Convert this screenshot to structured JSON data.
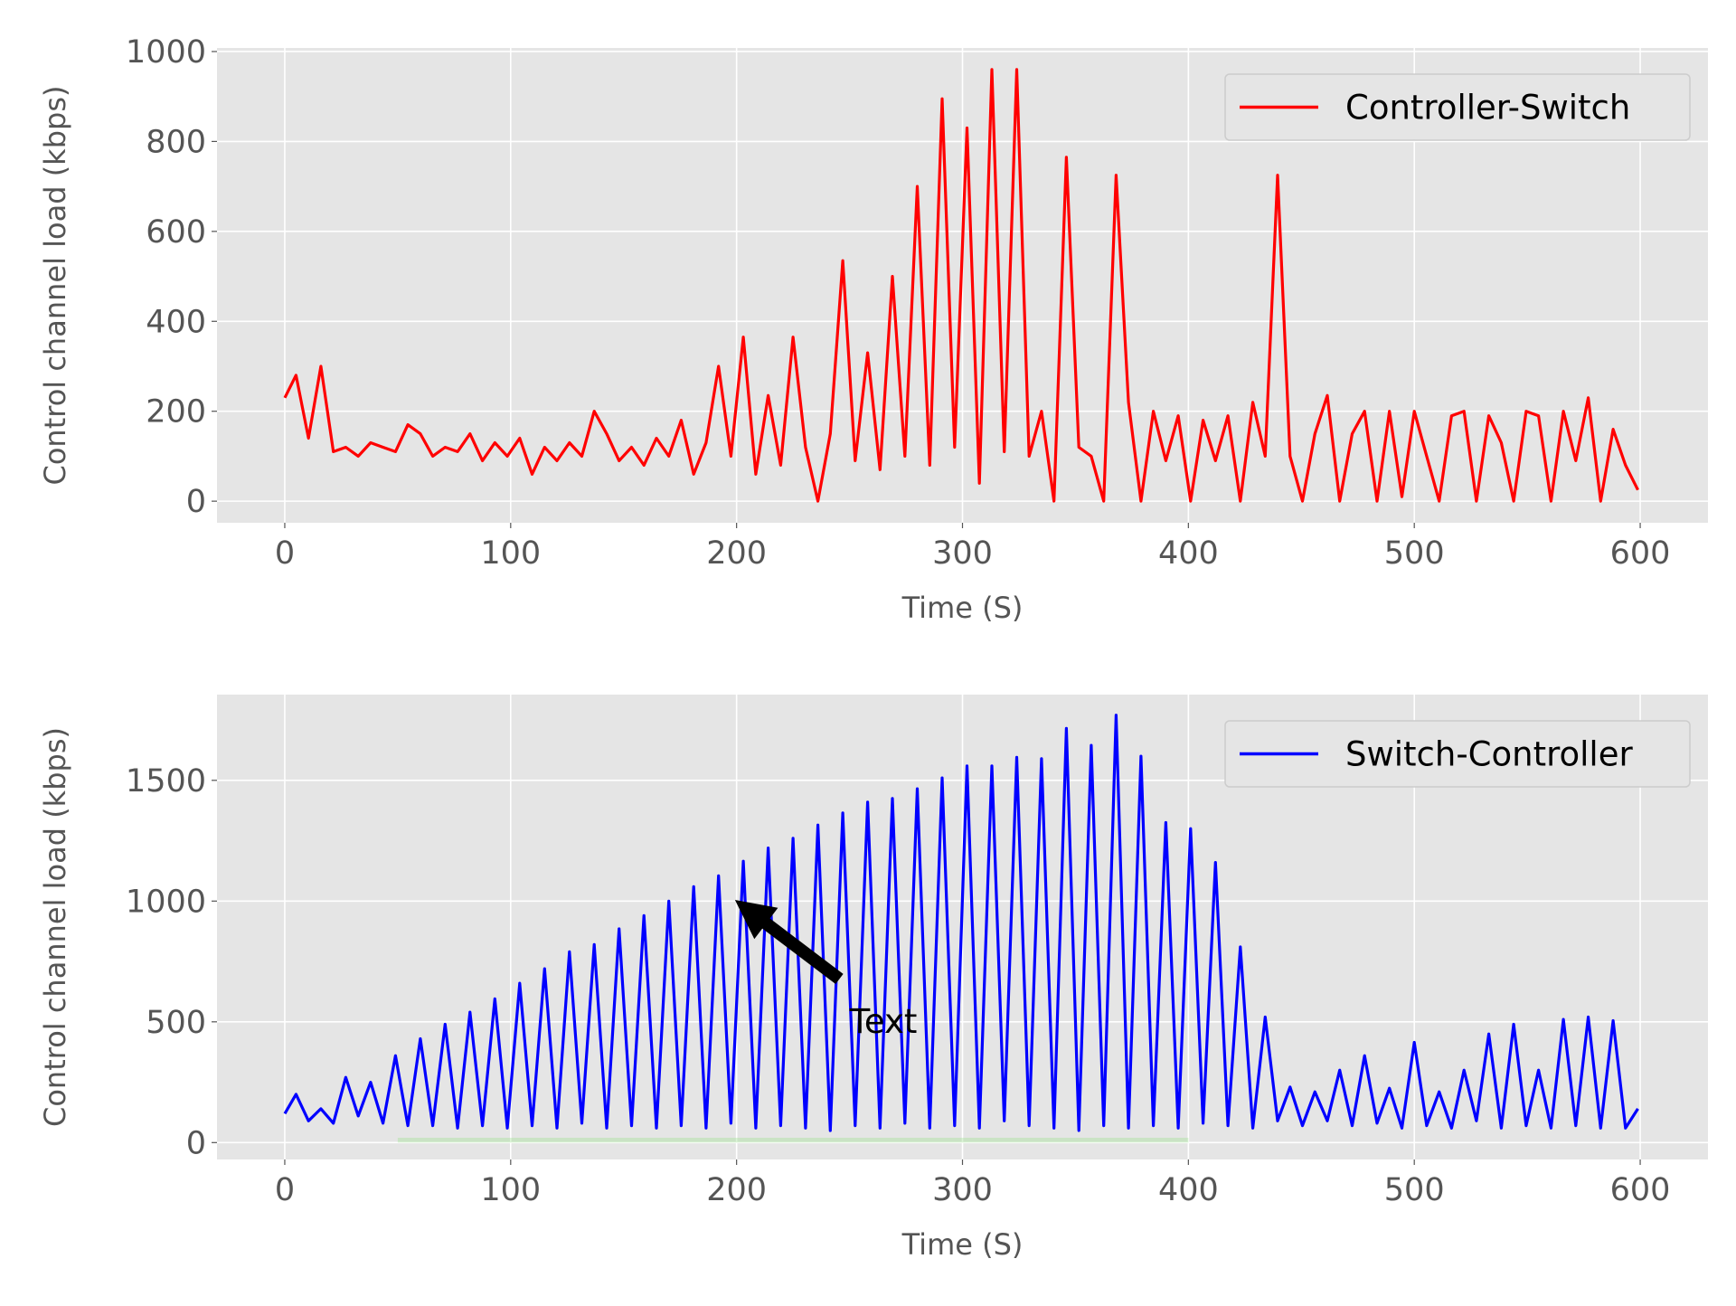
{
  "chart_data": [
    {
      "type": "line",
      "xlabel": "Time (S)",
      "ylabel": "Control channel load (kbps)",
      "xlim": [
        -30,
        630
      ],
      "ylim": [
        -48,
        1008
      ],
      "xticks": [
        0,
        100,
        200,
        300,
        400,
        500,
        600
      ],
      "yticks": [
        0,
        200,
        400,
        600,
        800,
        1000
      ],
      "grid": true,
      "legend": "upper right",
      "x": [
        0,
        5,
        10.5,
        16,
        21.5,
        27,
        32.5,
        38,
        43.5,
        49,
        54.5,
        60,
        65.5,
        71,
        76.5,
        82,
        87.5,
        93,
        98.5,
        104,
        109.5,
        115,
        120.5,
        126,
        131.5,
        137,
        142.5,
        148,
        153.5,
        159,
        164.5,
        170,
        175.5,
        181,
        186.5,
        192,
        197.5,
        203,
        208.5,
        214,
        219.5,
        225,
        230.5,
        236,
        241.5,
        247,
        252.5,
        258,
        263.5,
        269,
        274.5,
        280,
        285.5,
        291,
        296.5,
        302,
        307.5,
        313,
        318.5,
        324,
        329.5,
        335,
        340.5,
        346,
        351.5,
        357,
        362.5,
        368,
        373.5,
        379,
        384.5,
        390,
        395.5,
        401,
        406.5,
        412,
        417.5,
        423,
        428.5,
        434,
        439.5,
        445,
        450.5,
        456,
        461.5,
        467,
        472.5,
        478,
        483.5,
        489,
        494.5,
        500,
        505.5,
        511,
        516.5,
        522,
        527.5,
        533,
        538.5,
        544,
        549.5,
        555,
        560.5,
        566,
        571.5,
        577,
        582.5,
        588,
        593.5,
        599
      ],
      "series": [
        {
          "name": "Controller-Switch",
          "color": "#ff0000",
          "values": [
            230,
            280,
            140,
            300,
            110,
            120,
            100,
            130,
            120,
            110,
            170,
            150,
            100,
            120,
            110,
            150,
            90,
            130,
            100,
            140,
            60,
            120,
            90,
            130,
            100,
            200,
            150,
            90,
            120,
            80,
            140,
            100,
            180,
            60,
            130,
            300,
            100,
            365,
            60,
            235,
            80,
            365,
            120,
            0,
            150,
            535,
            90,
            330,
            70,
            500,
            100,
            700,
            80,
            895,
            120,
            830,
            40,
            960,
            110,
            960,
            100,
            200,
            0,
            765,
            120,
            100,
            0,
            725,
            220,
            0,
            200,
            90,
            190,
            0,
            180,
            90,
            190,
            0,
            220,
            100,
            725,
            100,
            0,
            150,
            235,
            0,
            150,
            200,
            0,
            200,
            10,
            200,
            100,
            0,
            190,
            200,
            0,
            190,
            130,
            0,
            200,
            190,
            0,
            200,
            90,
            230,
            0,
            160,
            80,
            25
          ]
        }
      ]
    },
    {
      "type": "line",
      "xlabel": "Time (S)",
      "ylabel": "Control channel load (kbps)",
      "xlim": [
        -30,
        630
      ],
      "ylim": [
        -70,
        1855
      ],
      "xticks": [
        0,
        100,
        200,
        300,
        400,
        500,
        600
      ],
      "yticks": [
        0,
        500,
        1000,
        1500
      ],
      "grid": true,
      "legend": "upper right",
      "x": [
        0,
        5,
        10.5,
        16,
        21.5,
        27,
        32.5,
        38,
        43.5,
        49,
        54.5,
        60,
        65.5,
        71,
        76.5,
        82,
        87.5,
        93,
        98.5,
        104,
        109.5,
        115,
        120.5,
        126,
        131.5,
        137,
        142.5,
        148,
        153.5,
        159,
        164.5,
        170,
        175.5,
        181,
        186.5,
        192,
        197.5,
        203,
        208.5,
        214,
        219.5,
        225,
        230.5,
        236,
        241.5,
        247,
        252.5,
        258,
        263.5,
        269,
        274.5,
        280,
        285.5,
        291,
        296.5,
        302,
        307.5,
        313,
        318.5,
        324,
        329.5,
        335,
        340.5,
        346,
        351.5,
        357,
        362.5,
        368,
        373.5,
        379,
        384.5,
        390,
        395.5,
        401,
        406.5,
        412,
        417.5,
        423,
        428.5,
        434,
        439.5,
        445,
        450.5,
        456,
        461.5,
        467,
        472.5,
        478,
        483.5,
        489,
        494.5,
        500,
        505.5,
        511,
        516.5,
        522,
        527.5,
        533,
        538.5,
        544,
        549.5,
        555,
        560.5,
        566,
        571.5,
        577,
        582.5,
        588,
        593.5,
        599
      ],
      "series": [
        {
          "name": "Switch-Controller",
          "color": "#0000ff",
          "values": [
            120,
            200,
            90,
            140,
            80,
            270,
            110,
            250,
            80,
            360,
            70,
            430,
            70,
            490,
            60,
            540,
            70,
            595,
            60,
            660,
            70,
            720,
            60,
            790,
            80,
            820,
            60,
            885,
            70,
            940,
            60,
            1000,
            70,
            1060,
            60,
            1105,
            80,
            1165,
            60,
            1220,
            70,
            1260,
            60,
            1315,
            50,
            1365,
            70,
            1410,
            60,
            1425,
            80,
            1465,
            60,
            1510,
            70,
            1560,
            60,
            1560,
            90,
            1595,
            70,
            1590,
            60,
            1715,
            50,
            1645,
            70,
            1770,
            60,
            1600,
            70,
            1325,
            60,
            1300,
            80,
            1160,
            70,
            810,
            60,
            520,
            90,
            230,
            70,
            210,
            90,
            300,
            70,
            360,
            80,
            225,
            60,
            415,
            70,
            210,
            60,
            300,
            90,
            450,
            60,
            490,
            70,
            300,
            60,
            510,
            70,
            520,
            60,
            505,
            60,
            140
          ]
        }
      ],
      "shaded_region": {
        "x": [
          50,
          400
        ],
        "y": [
          0,
          20
        ],
        "color": "#98df8a"
      },
      "annotation": {
        "text": "Text",
        "xy": [
          200,
          1000
        ],
        "xytext": [
          250,
          500
        ]
      }
    }
  ]
}
